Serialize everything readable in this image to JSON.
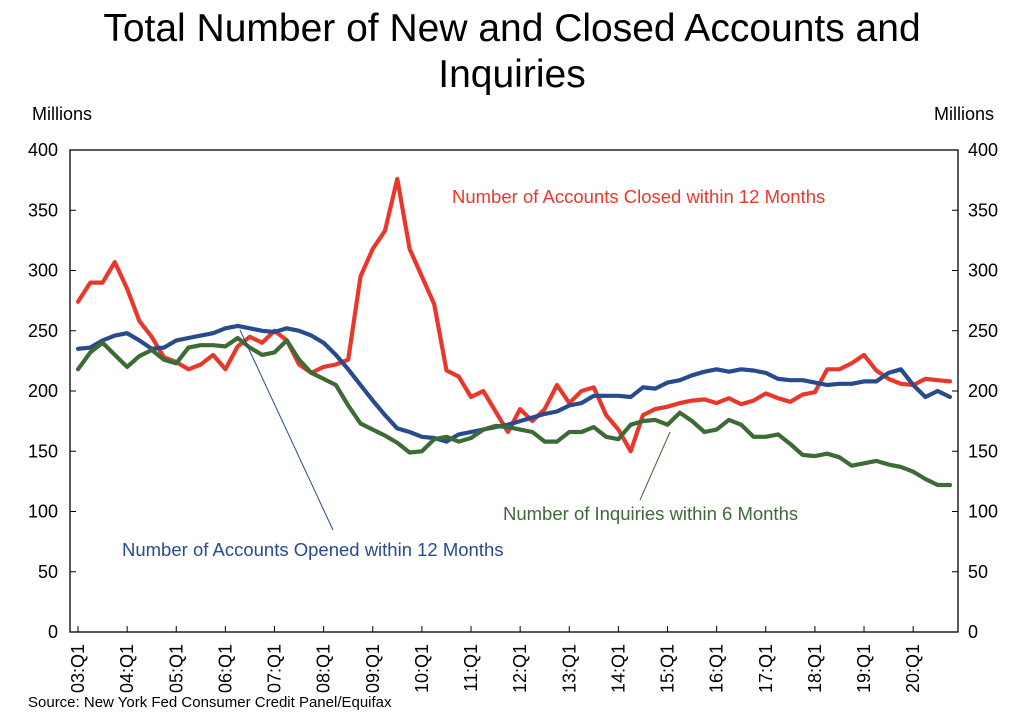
{
  "chart_data": {
    "type": "line",
    "title": "Total Number of New and Closed Accounts and Inquiries",
    "title_lines": [
      "Total Number of New and Closed Accounts and",
      "Inquiries"
    ],
    "ylabel_left": "Millions",
    "ylabel_right": "Millions",
    "ylim": [
      0,
      400
    ],
    "y_ticks": [
      0,
      50,
      100,
      150,
      200,
      250,
      300,
      350,
      400
    ],
    "x_ticks": [
      "03:Q1",
      "04:Q1",
      "05:Q1",
      "06:Q1",
      "07:Q1",
      "08:Q1",
      "09:Q1",
      "10:Q1",
      "11:Q1",
      "12:Q1",
      "13:Q1",
      "14:Q1",
      "15:Q1",
      "16:Q1",
      "17:Q1",
      "18:Q1",
      "19:Q1",
      "20:Q1"
    ],
    "x_range": [
      2003.0,
      2020.75
    ],
    "grid": false,
    "series": [
      {
        "name": "Number of Accounts Closed within 12 Months",
        "color": "#e8382c",
        "x": [
          2003.0,
          2003.25,
          2003.5,
          2003.75,
          2004.0,
          2004.25,
          2004.5,
          2004.75,
          2005.0,
          2005.25,
          2005.5,
          2005.75,
          2006.0,
          2006.25,
          2006.5,
          2006.75,
          2007.0,
          2007.25,
          2007.5,
          2007.75,
          2008.0,
          2008.25,
          2008.5,
          2008.75,
          2009.0,
          2009.25,
          2009.5,
          2009.75,
          2010.0,
          2010.25,
          2010.5,
          2010.75,
          2011.0,
          2011.25,
          2011.5,
          2011.75,
          2012.0,
          2012.25,
          2012.5,
          2012.75,
          2013.0,
          2013.25,
          2013.5,
          2013.75,
          2014.0,
          2014.25,
          2014.5,
          2014.75,
          2015.0,
          2015.25,
          2015.5,
          2015.75,
          2016.0,
          2016.25,
          2016.5,
          2016.75,
          2017.0,
          2017.25,
          2017.5,
          2017.75,
          2018.0,
          2018.25,
          2018.5,
          2018.75,
          2019.0,
          2019.25,
          2019.5,
          2019.75,
          2020.0,
          2020.25,
          2020.5,
          2020.75
        ],
        "values": [
          274,
          290,
          290,
          307,
          285,
          258,
          245,
          228,
          224,
          218,
          222,
          230,
          218,
          237,
          245,
          240,
          250,
          242,
          222,
          215,
          220,
          222,
          226,
          295,
          318,
          333,
          376,
          318,
          295,
          272,
          217,
          212,
          195,
          200,
          183,
          166,
          185,
          175,
          185,
          205,
          190,
          200,
          203,
          180,
          168,
          150,
          180,
          185,
          187,
          190,
          192,
          193,
          190,
          194,
          189,
          192,
          198,
          194,
          191,
          197,
          199,
          218,
          218,
          223,
          230,
          217,
          210,
          206,
          205,
          210,
          209,
          208
        ]
      },
      {
        "name": "Number of Accounts Opened within 12 Months",
        "color": "#284b8c",
        "x": [
          2003.0,
          2003.25,
          2003.5,
          2003.75,
          2004.0,
          2004.25,
          2004.5,
          2004.75,
          2005.0,
          2005.25,
          2005.5,
          2005.75,
          2006.0,
          2006.25,
          2006.5,
          2006.75,
          2007.0,
          2007.25,
          2007.5,
          2007.75,
          2008.0,
          2008.25,
          2008.5,
          2008.75,
          2009.0,
          2009.25,
          2009.5,
          2009.75,
          2010.0,
          2010.25,
          2010.5,
          2010.75,
          2011.0,
          2011.25,
          2011.5,
          2011.75,
          2012.0,
          2012.25,
          2012.5,
          2012.75,
          2013.0,
          2013.25,
          2013.5,
          2013.75,
          2014.0,
          2014.25,
          2014.5,
          2014.75,
          2015.0,
          2015.25,
          2015.5,
          2015.75,
          2016.0,
          2016.25,
          2016.5,
          2016.75,
          2017.0,
          2017.25,
          2017.5,
          2017.75,
          2018.0,
          2018.25,
          2018.5,
          2018.75,
          2019.0,
          2019.25,
          2019.5,
          2019.75,
          2020.0,
          2020.25,
          2020.5,
          2020.75
        ],
        "values": [
          235,
          236,
          242,
          246,
          248,
          242,
          235,
          236,
          242,
          244,
          246,
          248,
          252,
          254,
          252,
          250,
          249,
          252,
          250,
          246,
          240,
          230,
          218,
          205,
          192,
          180,
          169,
          166,
          162,
          161,
          158,
          164,
          166,
          168,
          170,
          172,
          175,
          178,
          181,
          183,
          188,
          190,
          196,
          196,
          196,
          195,
          203,
          202,
          207,
          209,
          213,
          216,
          218,
          216,
          218,
          217,
          215,
          210,
          209,
          209,
          207,
          205,
          206,
          206,
          208,
          208,
          215,
          218,
          205,
          195,
          200,
          195
        ]
      },
      {
        "name": "Number of Inquiries within 6 Months",
        "color": "#3d6b35",
        "x": [
          2003.0,
          2003.25,
          2003.5,
          2003.75,
          2004.0,
          2004.25,
          2004.5,
          2004.75,
          2005.0,
          2005.25,
          2005.5,
          2005.75,
          2006.0,
          2006.25,
          2006.5,
          2006.75,
          2007.0,
          2007.25,
          2007.5,
          2007.75,
          2008.0,
          2008.25,
          2008.5,
          2008.75,
          2009.0,
          2009.25,
          2009.5,
          2009.75,
          2010.0,
          2010.25,
          2010.5,
          2010.75,
          2011.0,
          2011.25,
          2011.5,
          2011.75,
          2012.0,
          2012.25,
          2012.5,
          2012.75,
          2013.0,
          2013.25,
          2013.5,
          2013.75,
          2014.0,
          2014.25,
          2014.5,
          2014.75,
          2015.0,
          2015.25,
          2015.5,
          2015.75,
          2016.0,
          2016.25,
          2016.5,
          2016.75,
          2017.0,
          2017.25,
          2017.5,
          2017.75,
          2018.0,
          2018.25,
          2018.5,
          2018.75,
          2019.0,
          2019.25,
          2019.5,
          2019.75,
          2020.0,
          2020.25,
          2020.5,
          2020.75
        ],
        "values": [
          218,
          232,
          240,
          230,
          220,
          229,
          234,
          226,
          223,
          236,
          238,
          238,
          237,
          244,
          236,
          230,
          232,
          242,
          226,
          215,
          210,
          205,
          188,
          173,
          168,
          163,
          157,
          149,
          150,
          160,
          162,
          158,
          161,
          168,
          171,
          170,
          168,
          166,
          158,
          158,
          166,
          166,
          170,
          162,
          160,
          172,
          175,
          176,
          172,
          182,
          175,
          166,
          168,
          176,
          172,
          162,
          162,
          164,
          156,
          147,
          146,
          148,
          145,
          138,
          140,
          142,
          139,
          137,
          133,
          127,
          122,
          122
        ]
      }
    ],
    "annotations": [
      {
        "text": "Number of Accounts Closed within 12 Months",
        "color": "#e8382c",
        "series": "Number of Accounts Closed within 12 Months"
      },
      {
        "text": "Number of Accounts Opened within 12 Months",
        "color": "#284b8c",
        "series": "Number of Accounts Opened within 12 Months"
      },
      {
        "text": "Number of Inquiries within 6 Months",
        "color": "#3d6b35",
        "series": "Number of Inquiries within 6 Months"
      }
    ],
    "source": "Source: New York Fed Consumer Credit Panel/Equifax"
  }
}
